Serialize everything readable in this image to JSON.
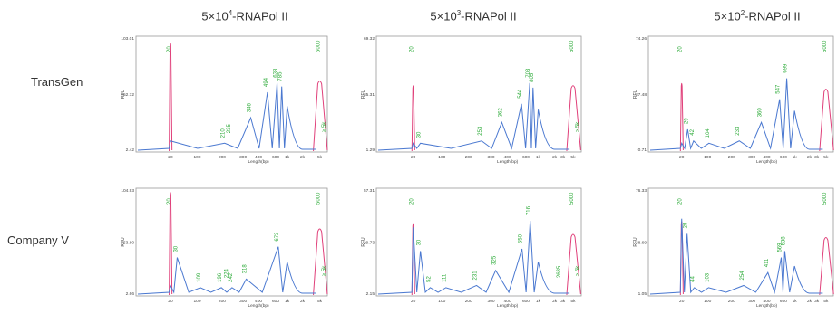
{
  "columns": [
    {
      "base": "5×10",
      "exp": "4",
      "suffix": "-RNAPol II"
    },
    {
      "base": "5×10",
      "exp": "3",
      "suffix": "-RNAPol II"
    },
    {
      "base": "5×10",
      "exp": "2",
      "suffix": "-RNAPol II"
    }
  ],
  "rows": [
    "TransGen",
    "Company V"
  ],
  "chart_data": [
    {
      "type": "line",
      "row": "TransGen",
      "column": "5×10^4-RNAPol II",
      "ylabel": "RFU",
      "xlabel": "Length(bp)",
      "ylim": [
        2.42,
        103.01
      ],
      "ytick_labels": [
        "103.01",
        "52.72",
        "2.42"
      ],
      "xtick_labels": [
        "20",
        "100",
        "200",
        "300",
        "400",
        "600",
        "1k",
        "2k",
        "5k"
      ],
      "series": [
        {
          "color": "#e0407a",
          "points": [
            [
              20,
              95
            ],
            [
              5000,
              62
            ]
          ]
        },
        {
          "color": "#4a78d0",
          "points": [
            [
              20,
              8
            ],
            [
              210,
              6
            ],
            [
              346,
              28
            ],
            [
              494,
              50
            ],
            [
              638,
              58
            ],
            [
              785,
              55
            ],
            [
              1000,
              38
            ]
          ]
        }
      ],
      "peak_labels": [
        "20",
        "210",
        "235",
        "346",
        "494",
        "638",
        "785",
        "5000",
        "≥ 5k"
      ]
    },
    {
      "type": "line",
      "row": "TransGen",
      "column": "5×10^3-RNAPol II",
      "ylabel": "RFU",
      "xlabel": "Length(bp)",
      "ylim": [
        1.29,
        69.32
      ],
      "ytick_labels": [
        "69.32",
        "35.31",
        "1.29"
      ],
      "xtick_labels": [
        "20",
        "100",
        "200",
        "300",
        "400",
        "600",
        "1k",
        "2k",
        "3k",
        "5k"
      ],
      "series": [
        {
          "color": "#e0407a",
          "points": [
            [
              20,
              58
            ],
            [
              5000,
              58
            ]
          ]
        },
        {
          "color": "#4a78d0",
          "points": [
            [
              20,
              6
            ],
            [
              30,
              6
            ],
            [
              253,
              8
            ],
            [
              362,
              24
            ],
            [
              544,
              40
            ],
            [
              703,
              58
            ],
            [
              805,
              54
            ],
            [
              1000,
              35
            ]
          ]
        }
      ],
      "peak_labels": [
        "20",
        "30",
        "253",
        "362",
        "544",
        "703",
        "805",
        "5000",
        "≥ 5k"
      ]
    },
    {
      "type": "line",
      "row": "TransGen",
      "column": "5×10^2-RNAPol II",
      "ylabel": "RFU",
      "xlabel": "Length(bp)",
      "ylim": [
        0.71,
        74.26
      ],
      "ytick_labels": [
        "74.26",
        "37.48",
        "0.71"
      ],
      "xtick_labels": [
        "20",
        "100",
        "200",
        "300",
        "400",
        "600",
        "1k",
        "2k",
        "3k",
        "5k"
      ],
      "series": [
        {
          "color": "#e0407a",
          "points": [
            [
              20,
              60
            ],
            [
              5000,
              55
            ]
          ]
        },
        {
          "color": "#4a78d0",
          "points": [
            [
              20,
              6
            ],
            [
              29,
              18
            ],
            [
              42,
              8
            ],
            [
              104,
              6
            ],
            [
              233,
              8
            ],
            [
              360,
              24
            ],
            [
              547,
              44
            ],
            [
              699,
              62
            ],
            [
              1000,
              34
            ]
          ]
        }
      ],
      "peak_labels": [
        "20",
        "29",
        "42",
        "104",
        "233",
        "360",
        "547",
        "699",
        "5000"
      ]
    },
    {
      "type": "line",
      "row": "Company V",
      "column": "5×10^4-RNAPol II",
      "ylabel": "RFU",
      "xlabel": "Length(bp)",
      "ylim": [
        2.66,
        104.93
      ],
      "ytick_labels": [
        "104.93",
        "53.80",
        "2.66"
      ],
      "xtick_labels": [
        "20",
        "100",
        "200",
        "300",
        "400",
        "600",
        "1k",
        "2k",
        "5k"
      ],
      "series": [
        {
          "color": "#e0407a",
          "points": [
            [
              20,
              97
            ],
            [
              5000,
              63
            ]
          ]
        },
        {
          "color": "#4a78d0",
          "points": [
            [
              20,
              8
            ],
            [
              30,
              34
            ],
            [
              109,
              6
            ],
            [
              196,
              6
            ],
            [
              242,
              6
            ],
            [
              318,
              14
            ],
            [
              673,
              44
            ],
            [
              1000,
              30
            ]
          ]
        }
      ],
      "peak_labels": [
        "20",
        "30",
        "109",
        "196",
        "224",
        "242",
        "318",
        "673",
        "5000",
        "≥ 5k"
      ]
    },
    {
      "type": "line",
      "row": "Company V",
      "column": "5×10^3-RNAPol II",
      "ylabel": "RFU",
      "xlabel": "Length(bp)",
      "ylim": [
        2.15,
        57.31
      ],
      "ytick_labels": [
        "57.31",
        "29.73",
        "2.15"
      ],
      "xtick_labels": [
        "20",
        "100",
        "200",
        "300",
        "400",
        "600",
        "1k",
        "2k",
        "3k",
        "5k"
      ],
      "series": [
        {
          "color": "#e0407a",
          "points": [
            [
              20,
              68
            ],
            [
              5000,
              58
            ]
          ]
        },
        {
          "color": "#4a78d0",
          "points": [
            [
              20,
              62
            ],
            [
              30,
              40
            ],
            [
              52,
              6
            ],
            [
              111,
              6
            ],
            [
              231,
              8
            ],
            [
              325,
              22
            ],
            [
              550,
              42
            ],
            [
              716,
              68
            ],
            [
              1000,
              30
            ]
          ]
        }
      ],
      "peak_labels": [
        "20",
        "30",
        "52",
        "111",
        "231",
        "325",
        "550",
        "716",
        "2685",
        "5000",
        "≥ 5k"
      ]
    },
    {
      "type": "line",
      "row": "Company V",
      "column": "5×10^2-RNAPol II",
      "ylabel": "RFU",
      "xlabel": "Length(bp)",
      "ylim": [
        1.05,
        76.33
      ],
      "ytick_labels": [
        "76.33",
        "38.69",
        "1.05"
      ],
      "xtick_labels": [
        "20",
        "100",
        "200",
        "300",
        "400",
        "600",
        "1k",
        "2k",
        "3k",
        "5k"
      ],
      "series": [
        {
          "color": "#e0407a",
          "points": [
            [
              20,
              70
            ],
            [
              5000,
              55
            ]
          ]
        },
        {
          "color": "#4a78d0",
          "points": [
            [
              20,
              70
            ],
            [
              28,
              56
            ],
            [
              44,
              6
            ],
            [
              103,
              6
            ],
            [
              254,
              8
            ],
            [
              411,
              20
            ],
            [
              569,
              34
            ],
            [
              638,
              40
            ],
            [
              1000,
              26
            ]
          ]
        }
      ],
      "peak_labels": [
        "20",
        "28",
        "44",
        "103",
        "254",
        "411",
        "569",
        "638",
        "5000"
      ]
    }
  ]
}
